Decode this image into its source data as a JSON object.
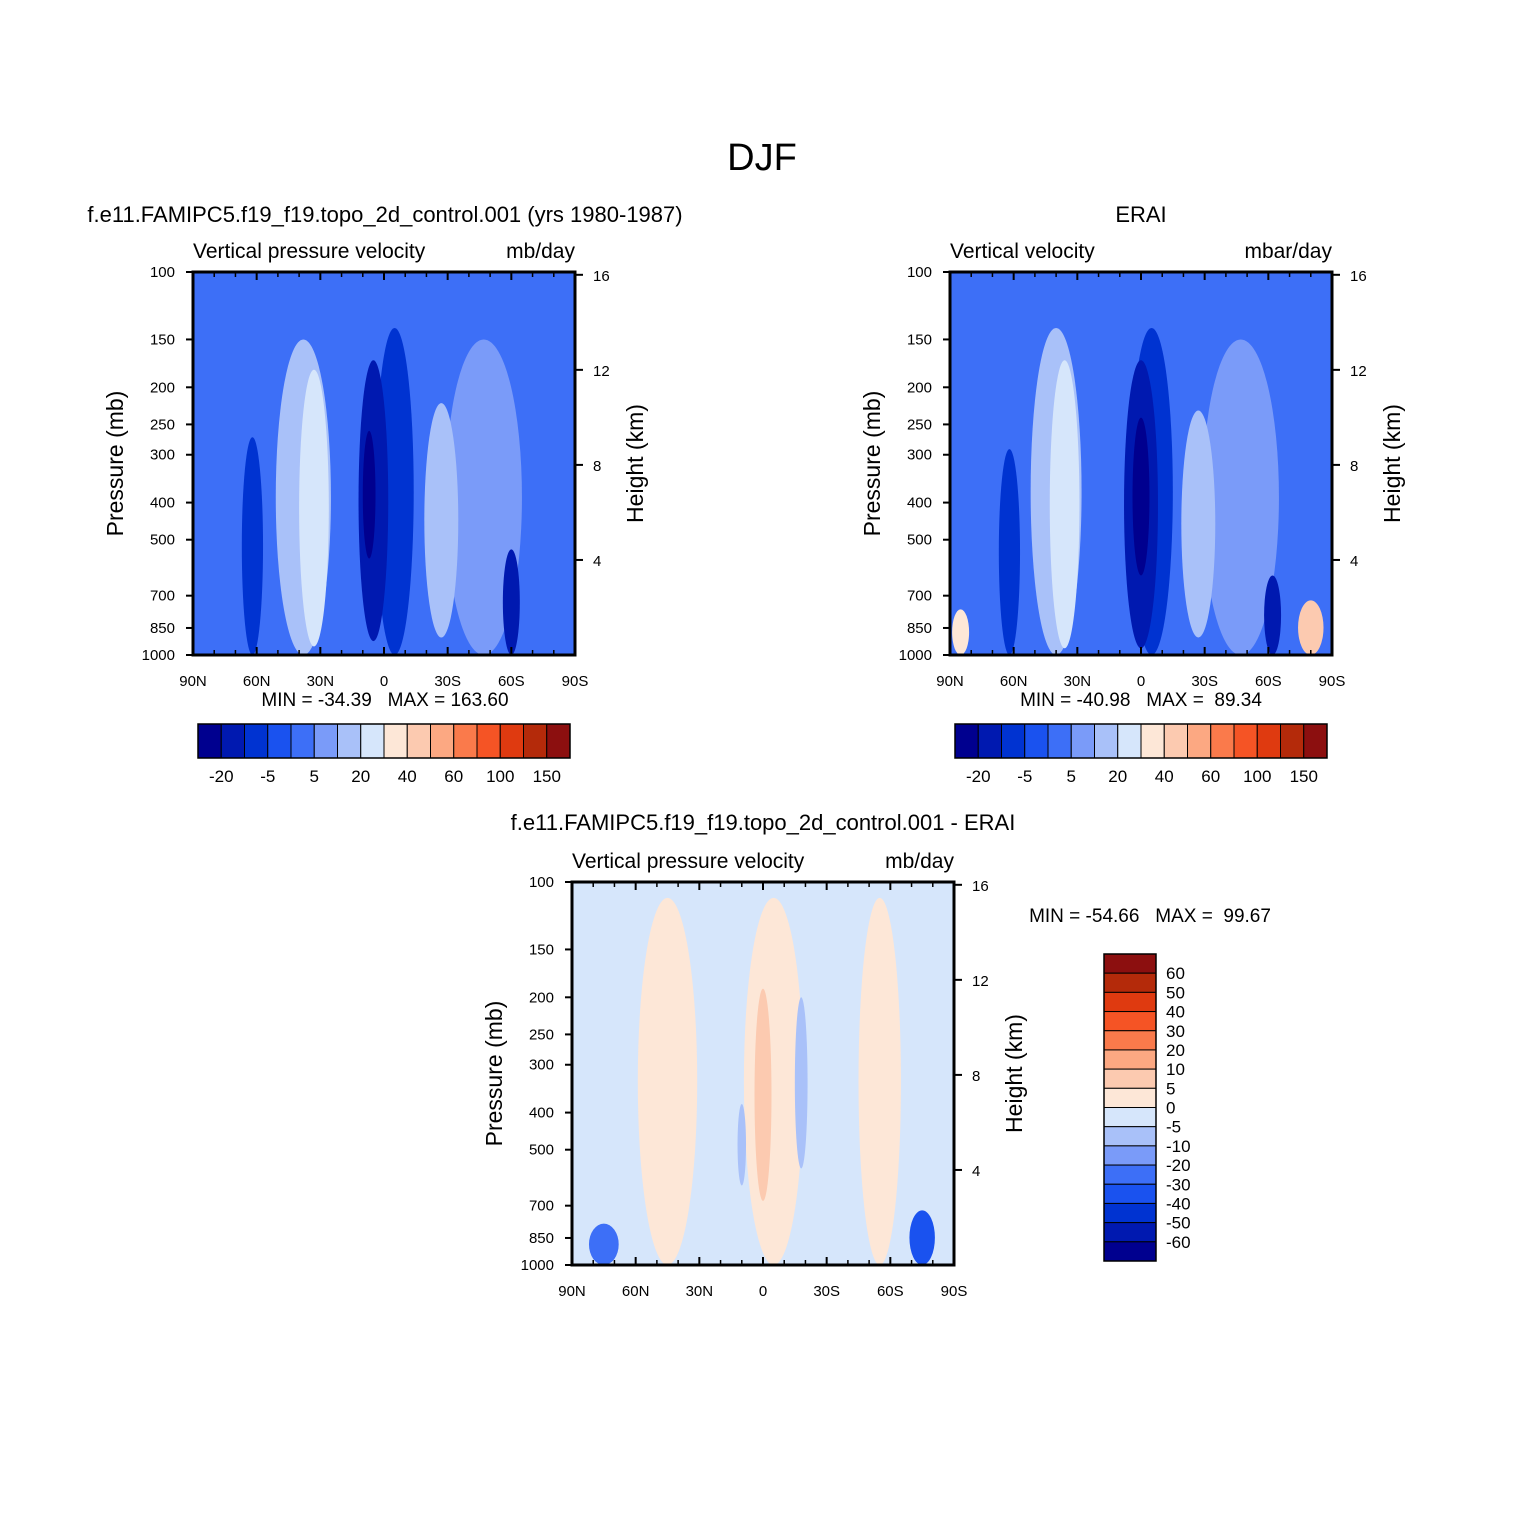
{
  "figure": {
    "title": "DJF"
  },
  "chart_data": [
    {
      "type": "heatmap",
      "panel": "model",
      "title": "f.e11.FAMIPC5.f19_f19.topo_2d_control.001 (yrs 1980-1987)",
      "subtitle_left": "Vertical pressure velocity",
      "subtitle_right": "mb/day",
      "ylabel": "Pressure (mb)",
      "ylabel_right": "Height (km)",
      "x_ticks": [
        "90N",
        "60N",
        "30N",
        "0",
        "30S",
        "60S",
        "90S"
      ],
      "y_ticks": [
        "100",
        "150",
        "200",
        "250",
        "300",
        "400",
        "500",
        "700",
        "850",
        "1000"
      ],
      "y_right_ticks": [
        "16",
        "12",
        "8",
        "4"
      ],
      "ylim": [
        1000,
        100
      ],
      "xlim": [
        90,
        -90
      ],
      "stats": {
        "label": "MIN = -34.39   MAX = 163.60",
        "min": -34.39,
        "max": 163.6
      },
      "colorbar": {
        "orientation": "horizontal",
        "levels": [
          -30,
          -20,
          -10,
          -5,
          0,
          5,
          10,
          20,
          30,
          40,
          50,
          60,
          80,
          100,
          120,
          150
        ],
        "tick_labels": [
          "-20",
          "-5",
          "5",
          "20",
          "40",
          "60",
          "100",
          "150"
        ],
        "colors": [
          "#00008f",
          "#0019b0",
          "#0033d1",
          "#1a52ef",
          "#3d6ff7",
          "#7a9bf9",
          "#a9c1f9",
          "#d6e6fb",
          "#fde7d7",
          "#fccab0",
          "#fca882",
          "#fa7a4b",
          "#f55425",
          "#df3a10",
          "#b42a0a",
          "#8c0f0f"
        ]
      }
    },
    {
      "type": "heatmap",
      "panel": "observations",
      "title": "ERAI",
      "subtitle_left": "Vertical velocity",
      "subtitle_right": "mbar/day",
      "ylabel": "Pressure (mb)",
      "ylabel_right": "Height (km)",
      "x_ticks": [
        "90N",
        "60N",
        "30N",
        "0",
        "30S",
        "60S",
        "90S"
      ],
      "y_ticks": [
        "100",
        "150",
        "200",
        "250",
        "300",
        "400",
        "500",
        "700",
        "850",
        "1000"
      ],
      "y_right_ticks": [
        "16",
        "12",
        "8",
        "4"
      ],
      "ylim": [
        1000,
        100
      ],
      "xlim": [
        90,
        -90
      ],
      "stats": {
        "label": "MIN = -40.98   MAX =  89.34",
        "min": -40.98,
        "max": 89.34
      },
      "colorbar": {
        "orientation": "horizontal",
        "levels": [
          -30,
          -20,
          -10,
          -5,
          0,
          5,
          10,
          20,
          30,
          40,
          50,
          60,
          80,
          100,
          120,
          150
        ],
        "tick_labels": [
          "-20",
          "-5",
          "5",
          "20",
          "40",
          "60",
          "100",
          "150"
        ],
        "colors": [
          "#00008f",
          "#0019b0",
          "#0033d1",
          "#1a52ef",
          "#3d6ff7",
          "#7a9bf9",
          "#a9c1f9",
          "#d6e6fb",
          "#fde7d7",
          "#fccab0",
          "#fca882",
          "#fa7a4b",
          "#f55425",
          "#df3a10",
          "#b42a0a",
          "#8c0f0f"
        ]
      }
    },
    {
      "type": "heatmap",
      "panel": "difference",
      "title": "f.e11.FAMIPC5.f19_f19.topo_2d_control.001 - ERAI",
      "subtitle_left": "Vertical pressure velocity",
      "subtitle_right": "mb/day",
      "ylabel": "Pressure (mb)",
      "ylabel_right": "Height (km)",
      "x_ticks": [
        "90N",
        "60N",
        "30N",
        "0",
        "30S",
        "60S",
        "90S"
      ],
      "y_ticks": [
        "100",
        "150",
        "200",
        "250",
        "300",
        "400",
        "500",
        "700",
        "850",
        "1000"
      ],
      "y_right_ticks": [
        "16",
        "12",
        "8",
        "4"
      ],
      "ylim": [
        1000,
        100
      ],
      "xlim": [
        90,
        -90
      ],
      "stats": {
        "label": "MIN = -54.66   MAX =  99.67",
        "min": -54.66,
        "max": 99.67
      },
      "colorbar": {
        "orientation": "vertical",
        "levels": [
          60,
          50,
          40,
          30,
          20,
          10,
          5,
          0,
          -5,
          -10,
          -20,
          -30,
          -40,
          -50,
          -60
        ],
        "tick_labels": [
          "60",
          "50",
          "40",
          "30",
          "20",
          "10",
          "5",
          "0",
          "-5",
          "-10",
          "-20",
          "-30",
          "-40",
          "-50",
          "-60"
        ],
        "colors": [
          "#8c0f0f",
          "#b42a0a",
          "#df3a10",
          "#f55425",
          "#fa7a4b",
          "#fca882",
          "#fccab0",
          "#fde7d7",
          "#d6e6fb",
          "#a9c1f9",
          "#7a9bf9",
          "#3d6ff7",
          "#1a52ef",
          "#0033d1",
          "#0019b0",
          "#00008f"
        ]
      }
    }
  ]
}
